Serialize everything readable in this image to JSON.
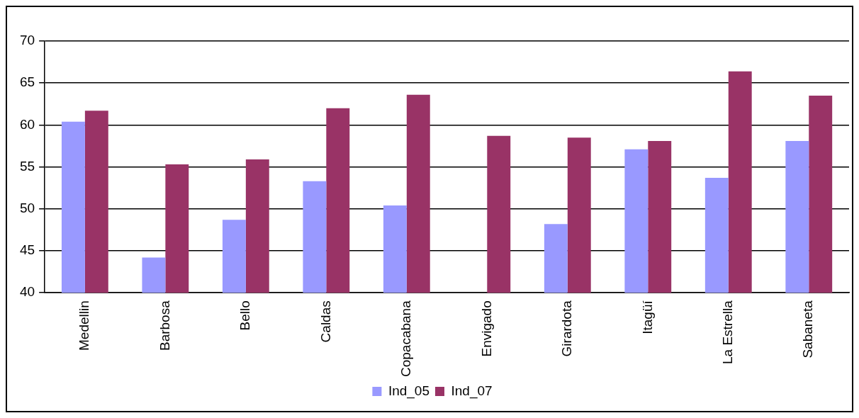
{
  "chart_data": {
    "type": "bar",
    "categories": [
      "Medellin",
      "Barbosa",
      "Bello",
      "Caldas",
      "Copacabana",
      "Envigado",
      "Girardota",
      "Itagüí",
      "La Estrella",
      "Sabaneta"
    ],
    "series": [
      {
        "name": "Ind_05",
        "color": "#9999ff",
        "values": [
          60.4,
          44.2,
          48.7,
          53.3,
          50.4,
          null,
          48.2,
          57.1,
          53.7,
          58.1
        ]
      },
      {
        "name": "Ind_07",
        "color": "#993366",
        "values": [
          61.7,
          55.3,
          55.9,
          62.0,
          63.6,
          58.7,
          58.5,
          58.1,
          66.4,
          63.5
        ]
      }
    ],
    "ylim": [
      40,
      70
    ],
    "yticks": [
      40,
      45,
      50,
      55,
      60,
      65,
      70
    ],
    "grid": "y",
    "legend": "bottom"
  }
}
